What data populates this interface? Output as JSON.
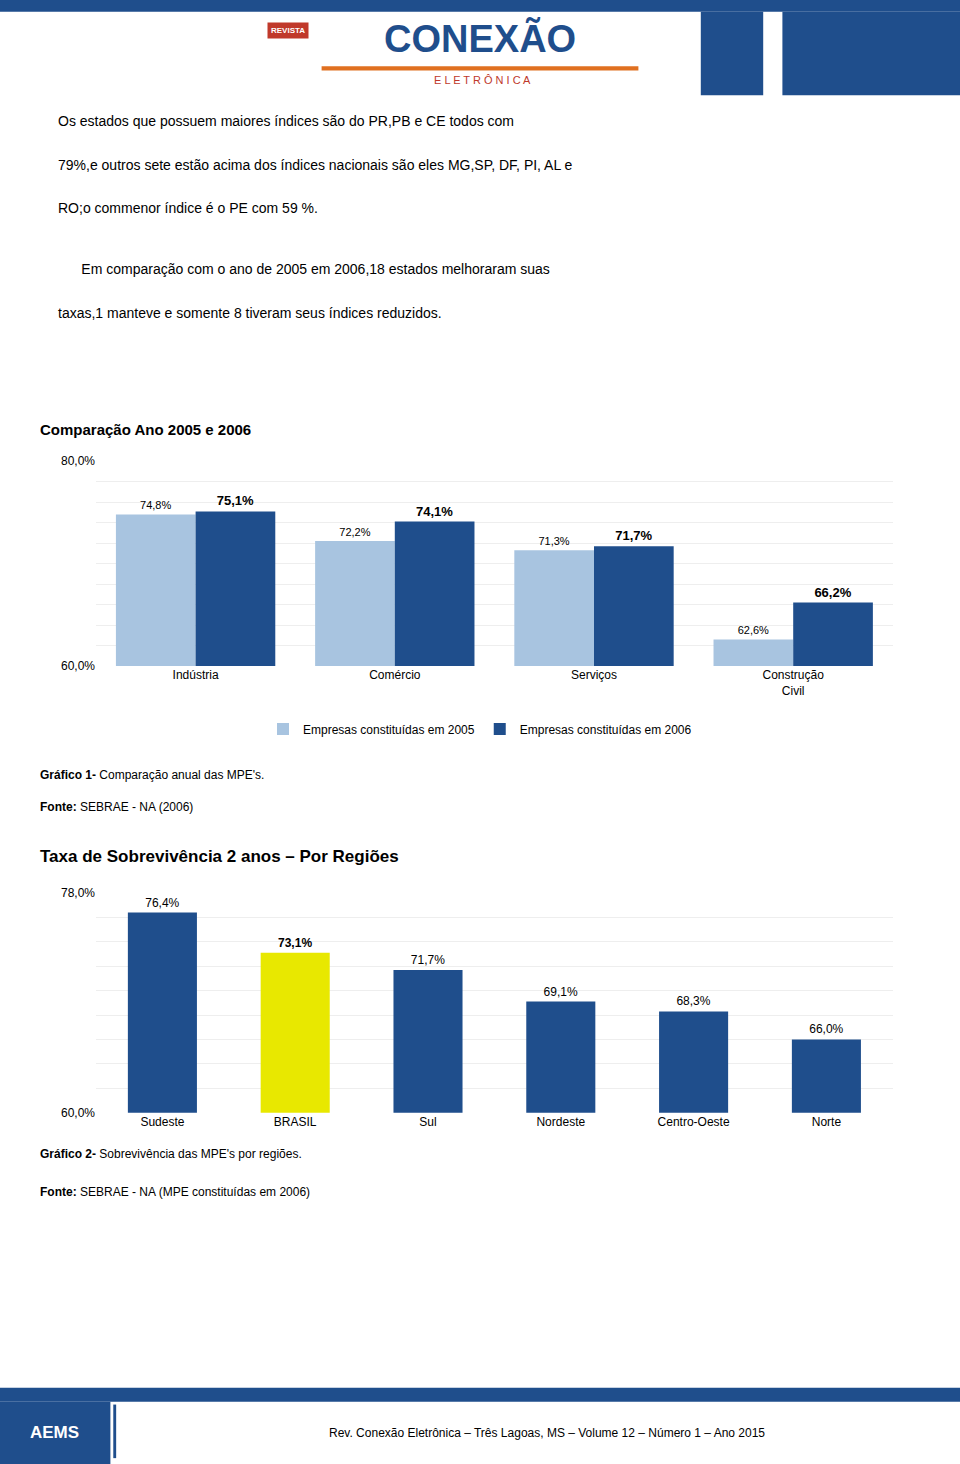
{
  "chart_data": [
    {
      "type": "bar",
      "title": "Comparação Ano 2005 e 2006",
      "categories": [
        "Indústria",
        "Comércio",
        "Serviços",
        "Construção\nCivil"
      ],
      "series": [
        {
          "name": "Empresas constituídas em 2005",
          "color": "#a8c4e0",
          "values": [
            74.8,
            72.2,
            71.3,
            62.6
          ],
          "value_labels": [
            "74,8%",
            "72,2%",
            "71,3%",
            "62,6%"
          ]
        },
        {
          "name": "Empresas constituídas em 2006",
          "color": "#1f4e8c",
          "values": [
            75.1,
            74.1,
            71.7,
            66.2
          ],
          "value_labels": [
            "75,1%",
            "74,1%",
            "71,7%",
            "66,2%"
          ]
        }
      ],
      "ylim": [
        60.0,
        80.0
      ],
      "yticks": [
        {
          "value": 60.0,
          "label": "60,0%"
        },
        {
          "value": 62.0,
          "label": null
        },
        {
          "value": 64.0,
          "label": null
        },
        {
          "value": 66.0,
          "label": null
        },
        {
          "value": 68.0,
          "label": null
        },
        {
          "value": 70.0,
          "label": null
        },
        {
          "value": 72.0,
          "label": null
        },
        {
          "value": 74.0,
          "label": null
        },
        {
          "value": 76.0,
          "label": null
        },
        {
          "value": 78.0,
          "label": null
        },
        {
          "value": 80.0,
          "label": "80,0%"
        }
      ],
      "grid": true,
      "legend": "bottom",
      "data_labels": true,
      "annotations": [
        "CONEXÃO",
        "REVISTA",
        "E L E T R Ô N I C A",
        "Os estados que possuem maiores índices são do PR,PB e CE todos com",
        "79%,e outros sete estão acima dos índices nacionais são eles MG,SP, DF, PI, AL e",
        "RO;o commenor índice é o PE com 59 %.",
        "      Em comparação com o ano de 2005 em 2006,18 estados melhoraram suas",
        "taxas,1 manteve e somente 8 tiveram seus índices reduzidos.",
        "Gráfico 1-",
        "Comparação anual das MPE's.",
        "Fonte:",
        "SEBRAE - NA (2006)"
      ]
    },
    {
      "type": "bar",
      "title": "Taxa de Sobrevivência 2 anos – Por Regiões",
      "categories": [
        "Sudeste",
        "BRASIL",
        "Sul",
        "Nordeste",
        "Centro-Oeste",
        "Norte"
      ],
      "values": [
        76.4,
        73.1,
        71.7,
        69.1,
        68.3,
        66.0
      ],
      "value_labels": [
        "76,4%",
        "73,1%",
        "71,7%",
        "69,1%",
        "68,3%",
        "66,0%"
      ],
      "colors": [
        "#1f4e8c",
        "#e8e800",
        "#1f4e8c",
        "#1f4e8c",
        "#1f4e8c",
        "#1f4e8c"
      ],
      "ylim": [
        60.0,
        78.0
      ],
      "yticks": [
        {
          "value": 60.0,
          "label": "60,0%"
        },
        {
          "value": 62.0,
          "label": null
        },
        {
          "value": 64.0,
          "label": null
        },
        {
          "value": 66.0,
          "label": null
        },
        {
          "value": 68.0,
          "label": null
        },
        {
          "value": 70.0,
          "label": null
        },
        {
          "value": 72.0,
          "label": null
        },
        {
          "value": 74.0,
          "label": null
        },
        {
          "value": 76.0,
          "label": null
        },
        {
          "value": 78.0,
          "label": "78,0%"
        }
      ],
      "grid": true,
      "data_labels": true,
      "annotations": [
        "Gráfico 2-",
        "Sobrevivência das MPE's por regiões.",
        "Fonte:",
        "SEBRAE - NA (MPE constituídas em 2006)",
        "AEMS",
        "Rev. Conexão Eletrônica – Três Lagoas, MS – Volume 12 – Número 1 – Ano 2015"
      ]
    }
  ]
}
